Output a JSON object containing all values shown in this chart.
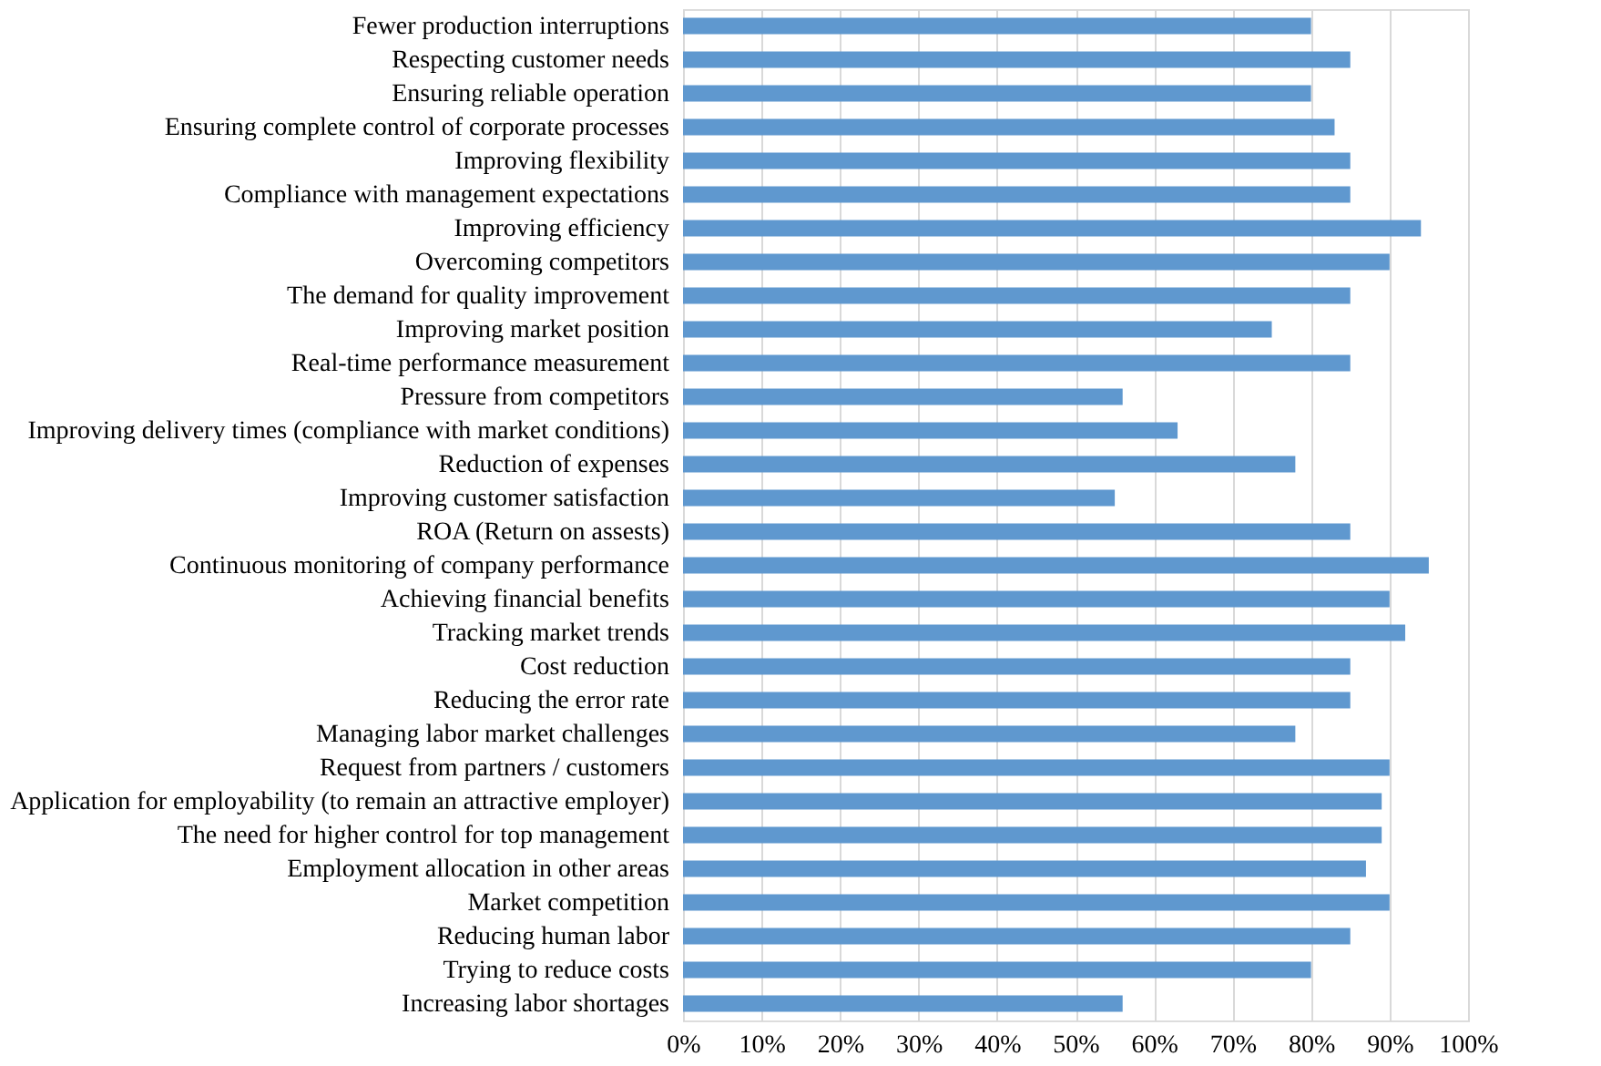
{
  "chart_data": {
    "type": "bar",
    "orientation": "horizontal",
    "categories": [
      "Fewer production interruptions",
      "Respecting customer needs",
      "Ensuring reliable operation",
      "Ensuring complete control of corporate processes",
      "Improving flexibility",
      "Compliance with management expectations",
      "Improving efficiency",
      "Overcoming competitors",
      "The demand for quality improvement",
      "Improving market position",
      "Real-time performance measurement",
      "Pressure from competitors",
      "Improving delivery times (compliance with market conditions)",
      "Reduction of expenses",
      "Improving customer satisfaction",
      "ROA (Return on assests)",
      "Continuous monitoring of company performance",
      "Achieving financial benefits",
      "Tracking market trends",
      "Cost reduction",
      "Reducing the error rate",
      "Managing labor market challenges",
      "Request from partners / customers",
      "Application for employability (to remain an attractive employer)",
      "The need for higher control for top management",
      "Employment allocation in other areas",
      "Market competition",
      "Reducing human labor",
      "Trying to reduce costs",
      "Increasing labor shortages"
    ],
    "values": [
      80,
      85,
      80,
      83,
      85,
      85,
      94,
      90,
      85,
      75,
      85,
      56,
      63,
      78,
      55,
      85,
      95,
      90,
      92,
      85,
      85,
      78,
      90,
      89,
      89,
      87,
      90,
      85,
      80,
      56
    ],
    "color": "#5f98cf",
    "xlim": [
      0,
      100
    ],
    "xticks": [
      {
        "value": 0,
        "label": "0%"
      },
      {
        "value": 10,
        "label": "10%"
      },
      {
        "value": 20,
        "label": "20%"
      },
      {
        "value": 30,
        "label": "30%"
      },
      {
        "value": 40,
        "label": "40%"
      },
      {
        "value": 50,
        "label": "50%"
      },
      {
        "value": 60,
        "label": "60%"
      },
      {
        "value": 70,
        "label": "70%"
      },
      {
        "value": 80,
        "label": "80%"
      },
      {
        "value": 90,
        "label": "90%"
      },
      {
        "value": 100,
        "label": "100%"
      }
    ],
    "grid": "x"
  }
}
